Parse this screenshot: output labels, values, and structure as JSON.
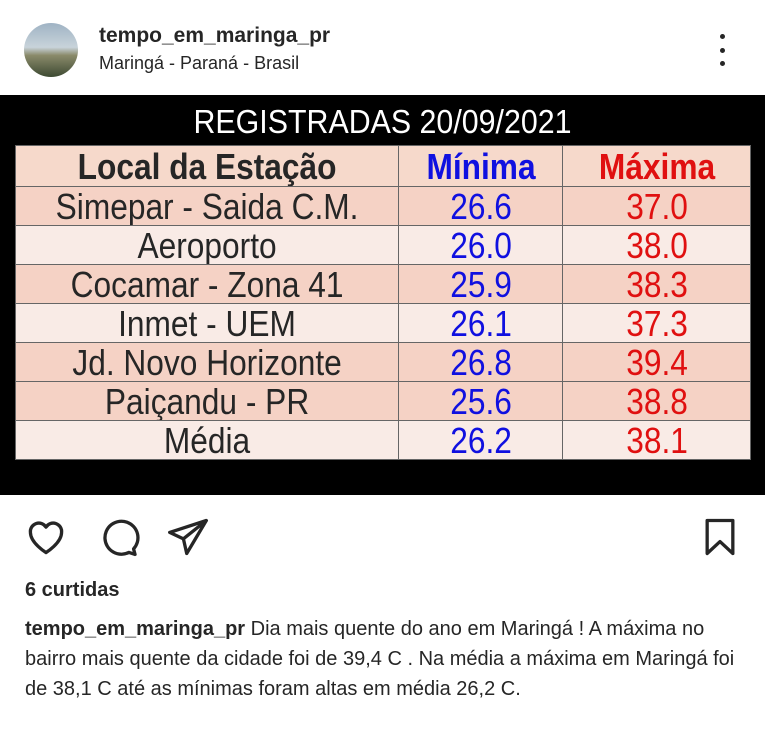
{
  "header": {
    "username": "tempo_em_maringa_pr",
    "location": "Maringá - Paraná - Brasil"
  },
  "post_image": {
    "title": "REGISTRADAS 20/09/2021",
    "columns": [
      "Local da Estação",
      "Mínima",
      "Máxima"
    ],
    "rows": [
      [
        "Simepar - Saida C.M.",
        "26.6",
        "37.0"
      ],
      [
        "Aeroporto",
        "26.0",
        "38.0"
      ],
      [
        "Cocamar - Zona 41",
        "25.9",
        "38.3"
      ],
      [
        "Inmet - UEM",
        "26.1",
        "37.3"
      ],
      [
        "Jd. Novo Horizonte",
        "26.8",
        "39.4"
      ],
      [
        "Paiçandu - PR",
        "25.6",
        "38.8"
      ],
      [
        "Média",
        "26.2",
        "38.1"
      ]
    ],
    "colors": {
      "min": "#1010e0",
      "max": "#e01010"
    }
  },
  "actions": {
    "icons": [
      "heart-icon",
      "comment-icon",
      "share-icon",
      "bookmark-icon"
    ]
  },
  "likes": "6 curtidas",
  "caption": {
    "username": "tempo_em_maringa_pr",
    "text": "Dia mais quente do ano em Maringá ! A máxima no bairro mais quente da cidade foi de 39,4 C . Na média  a máxima em Maringá foi de 38,1 C até as mínimas foram altas em média 26,2 C."
  }
}
